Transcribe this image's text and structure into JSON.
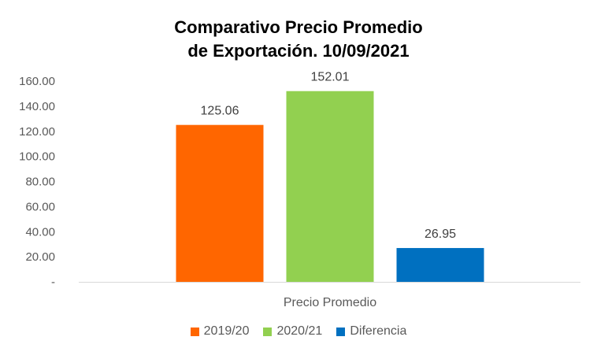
{
  "chart_data": {
    "type": "bar",
    "title_lines": [
      "Comparativo Precio Promedio",
      "de Exportación. 10/09/2021"
    ],
    "categories": [
      "Precio Promedio"
    ],
    "series": [
      {
        "name": "2019/20",
        "values": [
          125.06
        ],
        "label": "125.06",
        "color": "#FF6600"
      },
      {
        "name": "2020/21",
        "values": [
          152.01
        ],
        "label": "152.01",
        "color": "#92D050"
      },
      {
        "name": "Diferencia",
        "values": [
          26.95
        ],
        "label": "26.95",
        "color": "#0070C0"
      }
    ],
    "ylim": [
      0,
      160
    ],
    "yticks": [
      {
        "value": 0,
        "label": "-"
      },
      {
        "value": 20,
        "label": "20.00"
      },
      {
        "value": 40,
        "label": "40.00"
      },
      {
        "value": 60,
        "label": "60.00"
      },
      {
        "value": 80,
        "label": "80.00"
      },
      {
        "value": 100,
        "label": "100.00"
      },
      {
        "value": 120,
        "label": "120.00"
      },
      {
        "value": 140,
        "label": "140.00"
      },
      {
        "value": 160,
        "label": "160.00"
      }
    ],
    "grid": false,
    "legend_position": "bottom",
    "xlabel": "",
    "ylabel": ""
  }
}
